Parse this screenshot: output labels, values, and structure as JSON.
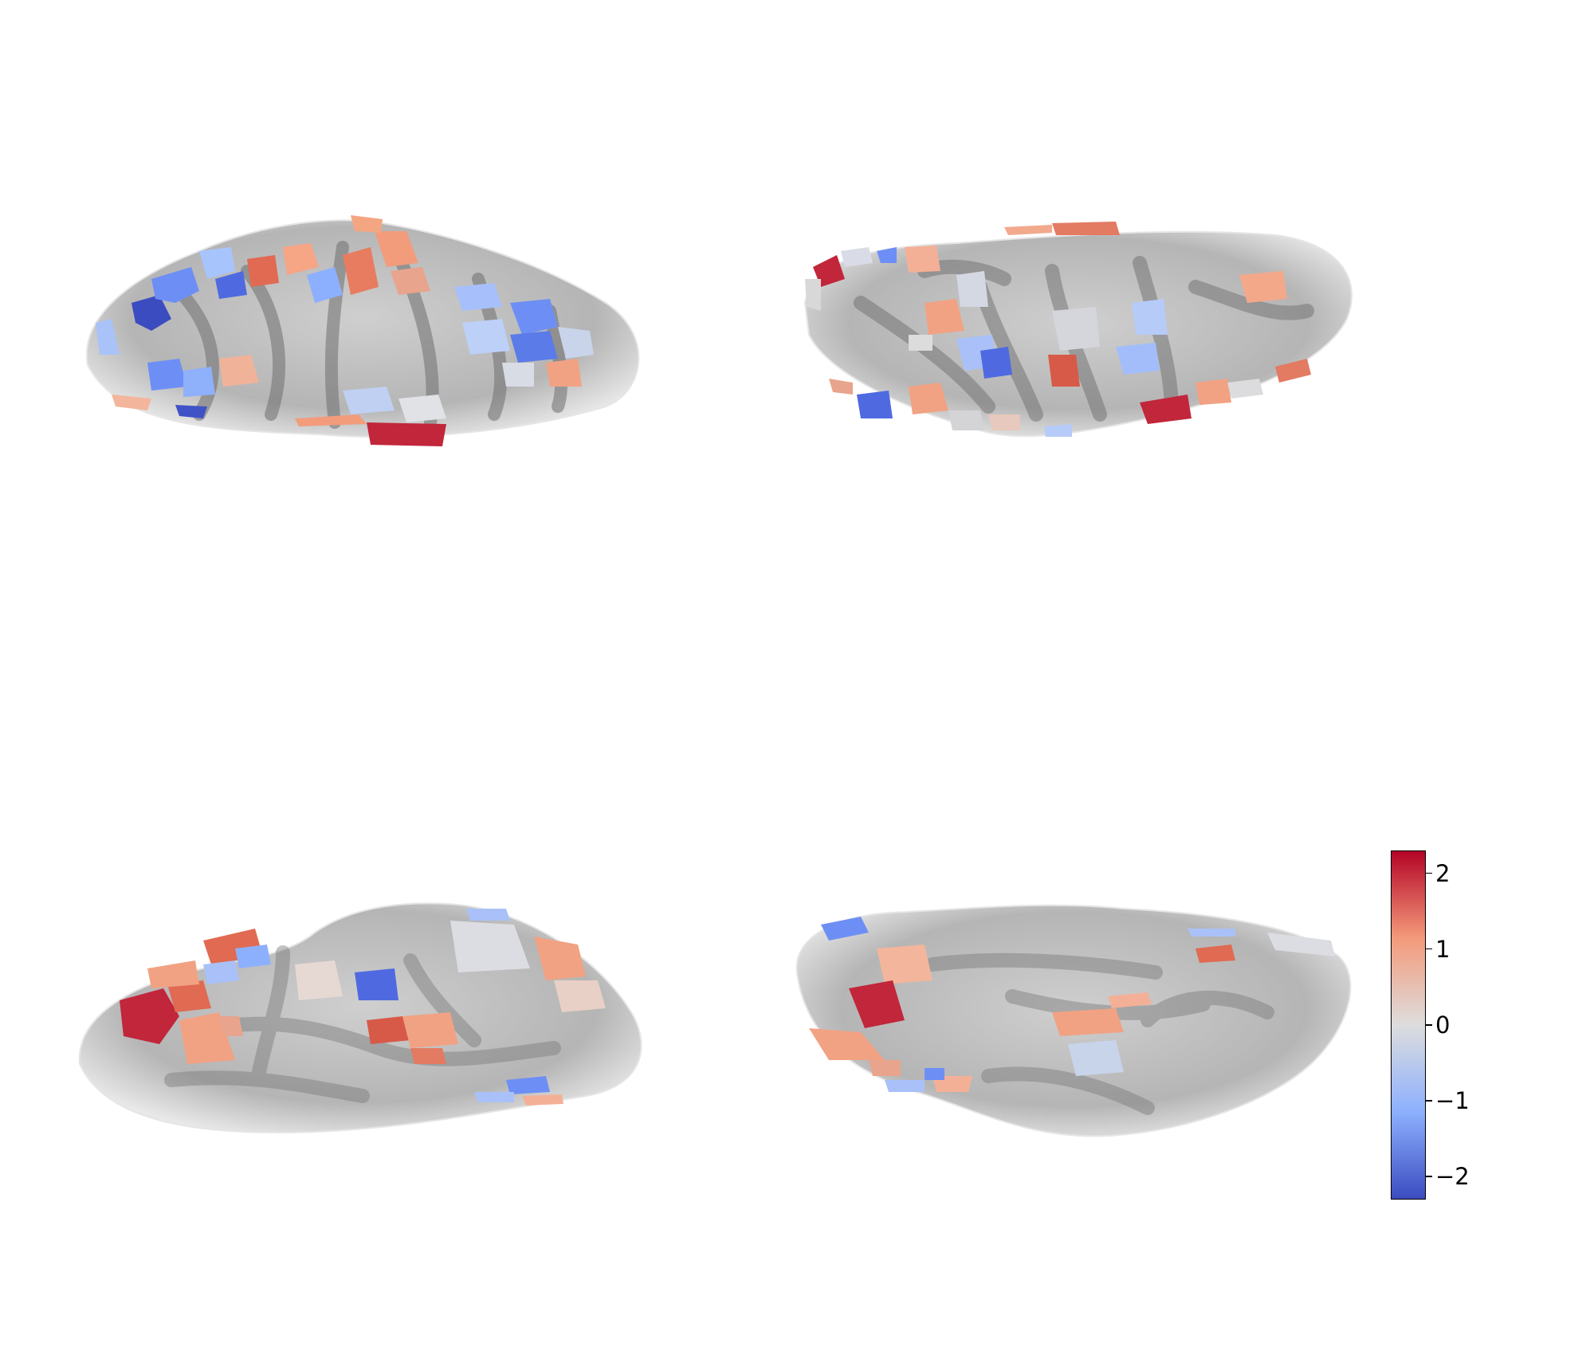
{
  "figure": {
    "views": [
      {
        "id": "lateral-top-left",
        "type": "brain-surface"
      },
      {
        "id": "medial-top-right",
        "type": "brain-surface"
      },
      {
        "id": "ventral-bottom-left",
        "type": "brain-surface"
      },
      {
        "id": "ventral-bottom-right",
        "type": "brain-surface"
      }
    ],
    "colorbar": {
      "colormap": "coolwarm",
      "range": [
        -2.3,
        2.3
      ],
      "colors": {
        "min": "#3b4cc0",
        "low": "#8db0fe",
        "mid": "#dddddd",
        "high": "#f49a7b",
        "max": "#b40426"
      },
      "ticks": [
        {
          "value": 2,
          "label": "2"
        },
        {
          "value": 1,
          "label": "1"
        },
        {
          "value": 0,
          "label": "0"
        },
        {
          "value": -1,
          "label": "−1"
        },
        {
          "value": -2,
          "label": "−2"
        }
      ]
    }
  }
}
